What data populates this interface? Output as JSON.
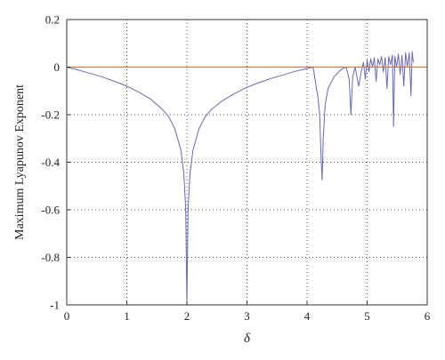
{
  "chart_data": {
    "type": "line",
    "xlabel": "δ",
    "ylabel": "Maximum Lyapunov Exponent",
    "xlim": [
      0,
      6
    ],
    "ylim": [
      -1,
      0.2
    ],
    "xticks": [
      "0",
      "1",
      "2",
      "3",
      "4",
      "5",
      "6"
    ],
    "yticks": [
      "0.2",
      "0",
      "-0.2",
      "-0.4",
      "-0.6",
      "-0.8",
      "-1"
    ],
    "grid": true,
    "series": [
      {
        "color": "#6a68b8",
        "points": [
          [
            0.0,
            0.0
          ],
          [
            0.2,
            -0.013
          ],
          [
            0.4,
            -0.027
          ],
          [
            0.6,
            -0.042
          ],
          [
            0.8,
            -0.06
          ],
          [
            1.0,
            -0.08
          ],
          [
            1.2,
            -0.105
          ],
          [
            1.4,
            -0.135
          ],
          [
            1.6,
            -0.18
          ],
          [
            1.7,
            -0.21
          ],
          [
            1.8,
            -0.26
          ],
          [
            1.9,
            -0.35
          ],
          [
            1.95,
            -0.45
          ],
          [
            1.98,
            -0.6
          ],
          [
            2.0,
            -1.0
          ],
          [
            2.02,
            -0.6
          ],
          [
            2.05,
            -0.45
          ],
          [
            2.1,
            -0.35
          ],
          [
            2.2,
            -0.26
          ],
          [
            2.3,
            -0.21
          ],
          [
            2.4,
            -0.18
          ],
          [
            2.6,
            -0.14
          ],
          [
            2.8,
            -0.11
          ],
          [
            3.0,
            -0.085
          ],
          [
            3.2,
            -0.065
          ],
          [
            3.4,
            -0.048
          ],
          [
            3.6,
            -0.033
          ],
          [
            3.8,
            -0.018
          ],
          [
            4.0,
            -0.006
          ],
          [
            4.1,
            0.0
          ],
          [
            4.12,
            -0.03
          ],
          [
            4.15,
            -0.08
          ],
          [
            4.18,
            -0.12
          ],
          [
            4.21,
            -0.2
          ],
          [
            4.23,
            -0.35
          ],
          [
            4.25,
            -0.475
          ],
          [
            4.27,
            -0.3
          ],
          [
            4.3,
            -0.16
          ],
          [
            4.35,
            -0.09
          ],
          [
            4.45,
            -0.04
          ],
          [
            4.55,
            -0.015
          ],
          [
            4.6,
            -0.005
          ],
          [
            4.65,
            0.0
          ],
          [
            4.7,
            -0.05
          ],
          [
            4.73,
            -0.2
          ],
          [
            4.76,
            -0.04
          ],
          [
            4.8,
            0.0
          ],
          [
            4.83,
            -0.04
          ],
          [
            4.86,
            -0.08
          ],
          [
            4.9,
            -0.02
          ],
          [
            4.94,
            0.02
          ],
          [
            4.97,
            -0.05
          ],
          [
            5.0,
            0.03
          ],
          [
            5.03,
            -0.02
          ],
          [
            5.06,
            0.035
          ],
          [
            5.09,
            0.0
          ],
          [
            5.12,
            0.04
          ],
          [
            5.15,
            -0.06
          ],
          [
            5.18,
            0.035
          ],
          [
            5.21,
            0.01
          ],
          [
            5.24,
            0.045
          ],
          [
            5.27,
            -0.02
          ],
          [
            5.3,
            0.04
          ],
          [
            5.33,
            -0.09
          ],
          [
            5.36,
            0.045
          ],
          [
            5.39,
            0.01
          ],
          [
            5.42,
            0.05
          ],
          [
            5.44,
            -0.25
          ],
          [
            5.46,
            0.045
          ],
          [
            5.49,
            0.0
          ],
          [
            5.52,
            0.055
          ],
          [
            5.55,
            -0.03
          ],
          [
            5.58,
            0.05
          ],
          [
            5.61,
            -0.08
          ],
          [
            5.64,
            0.06
          ],
          [
            5.67,
            0.0
          ],
          [
            5.7,
            0.06
          ],
          [
            5.73,
            -0.12
          ],
          [
            5.75,
            0.065
          ],
          [
            5.77,
            0.02
          ]
        ]
      },
      {
        "color": "#e0683a",
        "points": [
          [
            0,
            0
          ],
          [
            6,
            0
          ]
        ]
      }
    ]
  }
}
